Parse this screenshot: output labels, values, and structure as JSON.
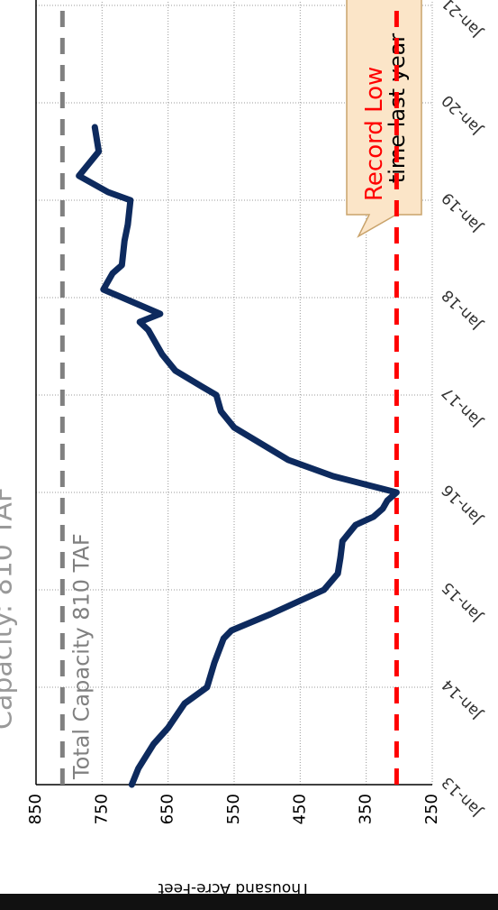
{
  "chart_data": {
    "type": "line",
    "title": "Capacity: 810 TAF",
    "y_label": "Thousand Acre-Feet",
    "callout": "time last year",
    "x": [
      "2013-01",
      "2013-03",
      "2013-06",
      "2013-08",
      "2013-11",
      "2014-01",
      "2014-04",
      "2014-07",
      "2014-08",
      "2014-10",
      "2014-12",
      "2015-01",
      "2015-03",
      "2015-05",
      "2015-07",
      "2015-09",
      "2015-10",
      "2015-11",
      "2015-12",
      "2016-01",
      "2016-03",
      "2016-05",
      "2016-07",
      "2016-09",
      "2016-11",
      "2017-01",
      "2017-02",
      "2017-04",
      "2017-06",
      "2017-09",
      "2017-10",
      "2017-11",
      "2018-02",
      "2018-04",
      "2018-05",
      "2018-08",
      "2018-10",
      "2019-01",
      "2019-02",
      "2019-04",
      "2019-05",
      "2019-07",
      "2019-08",
      "2019-10"
    ],
    "series": [
      {
        "color": "#0d2a5e",
        "values": [
          705,
          695,
          672,
          650,
          625,
          591,
          580,
          566,
          554,
          495,
          441,
          414,
          393,
          389,
          386,
          366,
          339,
          325,
          318,
          304,
          400,
          468,
          509,
          550,
          570,
          577,
          598,
          639,
          659,
          680,
          693,
          662,
          748,
          734,
          720,
          716,
          711,
          707,
          741,
          785,
          775,
          755,
          757,
          761
        ]
      }
    ],
    "xlim": [
      "2013-01",
      "2021-01"
    ],
    "xticks": [
      {
        "value": "2013-01",
        "label": "Jan-13"
      },
      {
        "value": "2014-01",
        "label": "Jan-14"
      },
      {
        "value": "2015-01",
        "label": "Jan-15"
      },
      {
        "value": "2016-01",
        "label": "Jan-16"
      },
      {
        "value": "2017-01",
        "label": "Jan-17"
      },
      {
        "value": "2018-01",
        "label": "Jan-18"
      },
      {
        "value": "2019-01",
        "label": "Jan-19"
      },
      {
        "value": "2020-01",
        "label": "Jan-20"
      },
      {
        "value": "2021-01",
        "label": "Jan-21"
      }
    ],
    "ylim": [
      250,
      850
    ],
    "yticks": [
      250,
      350,
      450,
      550,
      650,
      750,
      850
    ],
    "grid": true,
    "reference_lines": [
      {
        "value": 810,
        "label": "Total Capacity 810 TAF",
        "color": "#808080"
      },
      {
        "value": 304,
        "label": "Record Low",
        "color": "#ff0000"
      }
    ]
  }
}
